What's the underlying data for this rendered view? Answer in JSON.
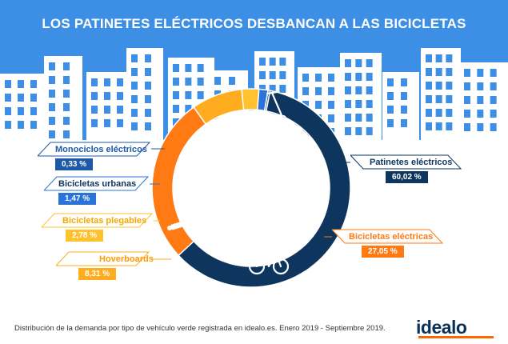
{
  "header": {
    "title": "LOS PATINETES ELÉCTRICOS DESBANCAN A LAS BICICLETAS"
  },
  "colors": {
    "header_blue": "#3d8fe6",
    "building": "#ffffff",
    "patinetes": "#0e355d",
    "bicicletas_electricas": "#ff7a12",
    "hoverboards": "#ffad1f",
    "bicicletas_plegables": "#ffc22e",
    "bicicletas_urbanas": "#2a74d9",
    "monociclos": "#1c5aa8"
  },
  "chart_data": {
    "type": "pie",
    "title": "LOS PATINETES ELÉCTRICOS DESBANCAN A LAS BICICLETAS",
    "categories": [
      "Patinetes eléctricos",
      "Bicicletas eléctricas",
      "Hoverboards",
      "Bicicletas plegables",
      "Bicicletas urbanas",
      "Monociclos eléctricos"
    ],
    "values": [
      60.02,
      27.05,
      8.31,
      2.78,
      1.47,
      0.33
    ],
    "value_labels": [
      "60,02 %",
      "27,05 %",
      "8,31 %",
      "2,78 %",
      "1,47 %",
      "0,33 %"
    ],
    "legend": "callouts",
    "donut": true
  },
  "labels": {
    "patinetes": {
      "name": "Patinetes eléctricos",
      "value": "60,02 %"
    },
    "bicicletas_electricas": {
      "name": "Bicicletas eléctricas",
      "value": "27,05 %"
    },
    "hoverboards": {
      "name": "Hoverboards",
      "value": "8,31 %"
    },
    "bicicletas_plegables": {
      "name": "Bicicletas plegables",
      "value": "2,78 %"
    },
    "bicicletas_urbanas": {
      "name": "Bicicletas urbanas",
      "value": "1,47 %"
    },
    "monociclos": {
      "name": "Monociclos eléctricos",
      "value": "0,33 %"
    }
  },
  "footer": {
    "note": "Distribución de la demanda por tipo de vehículo verde registrada en idealo.es. Enero 2019 - Septiembre 2019.",
    "brand": "idealo"
  },
  "icons": [
    "scooter-icon",
    "bicycle-icon",
    "hoverboard-icon"
  ]
}
